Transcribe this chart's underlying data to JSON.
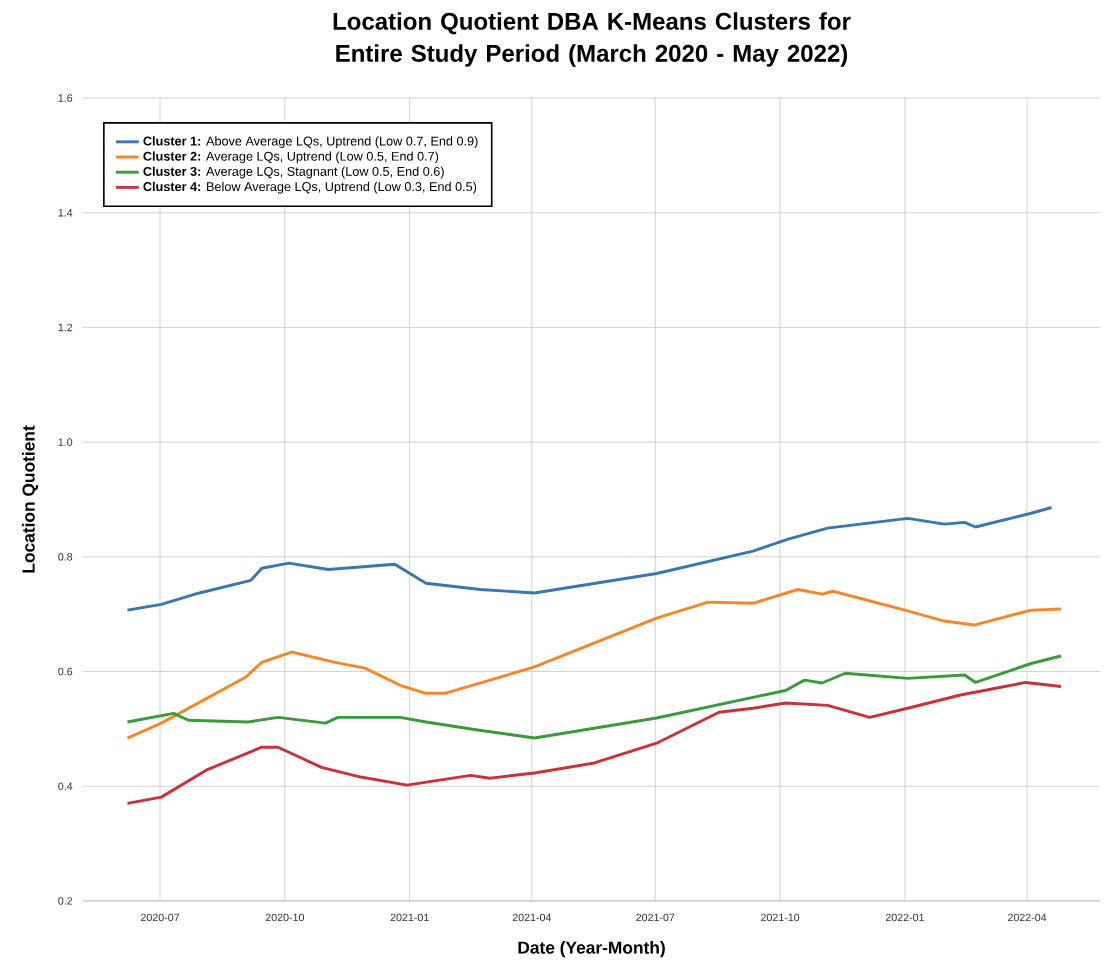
{
  "chart_data": {
    "type": "line",
    "title": "Location Quotient DBA K-Means Clusters for Entire Study Period (March 2020 - May 2022)",
    "xlabel": "Date (Year-Month)",
    "ylabel": "Location Quotient",
    "xlim": [
      "2020-05-05",
      "2022-05-25"
    ],
    "xticks": [
      {
        "value": "2020-07-01",
        "label": "2020-07"
      },
      {
        "value": "2020-10-01",
        "label": "2020-10"
      },
      {
        "value": "2021-01-01",
        "label": "2021-01"
      },
      {
        "value": "2021-04-01",
        "label": "2021-04"
      },
      {
        "value": "2021-07-01",
        "label": "2021-07"
      },
      {
        "value": "2021-10-01",
        "label": "2021-10"
      },
      {
        "value": "2022-01-01",
        "label": "2022-01"
      },
      {
        "value": "2022-04-01",
        "label": "2022-04"
      }
    ],
    "ylim": [
      0.2,
      1.6
    ],
    "yticks": [
      0.2,
      0.4,
      0.6,
      0.8,
      {
        "value": 1,
        "label": "1.0"
      },
      1.2,
      1.4,
      1.6
    ],
    "grid": true,
    "legend": "top left",
    "marker": "none",
    "line_style": "solid",
    "series": [
      {
        "name": "**Cluster 1:** Above Average LQs, Uptrend (Low 0.7, End 0.9)",
        "color": "#3a76b0",
        "x": [
          "2020-06-07",
          "2020-07-02",
          "2020-07-30",
          "2020-09-06",
          "2020-09-14",
          "2020-10-04",
          "2020-11-02",
          "2020-12-21",
          "2021-01-13",
          "2021-02-22",
          "2021-04-03",
          "2021-07-02",
          "2021-09-11",
          "2021-10-07",
          "2021-11-05",
          "2022-01-03",
          "2022-01-30",
          "2022-02-14",
          "2022-02-22",
          "2022-04-04",
          "2022-04-19"
        ],
        "values": [
          0.707,
          0.717,
          0.737,
          0.759,
          0.78,
          0.789,
          0.778,
          0.787,
          0.754,
          0.743,
          0.737,
          0.771,
          0.81,
          0.831,
          0.85,
          0.867,
          0.857,
          0.86,
          0.852,
          0.876,
          0.886
        ]
      },
      {
        "name": "**Cluster 2:** Average LQs, Uptrend (Low 0.5, End 0.7)",
        "color": "#f5862a",
        "x": [
          "2020-06-07",
          "2020-07-02",
          "2020-09-02",
          "2020-09-14",
          "2020-10-06",
          "2020-11-07",
          "2020-11-29",
          "2020-12-25",
          "2021-01-13",
          "2021-01-27",
          "2021-04-03",
          "2021-07-02",
          "2021-08-09",
          "2021-09-11",
          "2021-10-14",
          "2021-11-01",
          "2021-11-09",
          "2022-01-01",
          "2022-01-30",
          "2022-02-21",
          "2022-04-04",
          "2022-04-26"
        ],
        "values": [
          0.484,
          0.51,
          0.59,
          0.616,
          0.634,
          0.616,
          0.606,
          0.576,
          0.562,
          0.562,
          0.608,
          0.693,
          0.721,
          0.719,
          0.743,
          0.735,
          0.74,
          0.707,
          0.688,
          0.681,
          0.707,
          0.709
        ]
      },
      {
        "name": "**Cluster 3:** Average LQs, Stagnant (Low 0.5, End 0.6)",
        "color": "#3b9a3b",
        "x": [
          "2020-06-07",
          "2020-07-11",
          "2020-07-22",
          "2020-09-04",
          "2020-09-26",
          "2020-10-31",
          "2020-11-09",
          "2020-12-25",
          "2021-01-13",
          "2021-02-20",
          "2021-04-03",
          "2021-07-02",
          "2021-09-11",
          "2021-10-05",
          "2021-10-19",
          "2021-11-01",
          "2021-11-18",
          "2022-01-03",
          "2022-02-14",
          "2022-02-22",
          "2022-04-04",
          "2022-04-26"
        ],
        "values": [
          0.512,
          0.527,
          0.515,
          0.512,
          0.52,
          0.51,
          0.52,
          0.52,
          0.512,
          0.498,
          0.484,
          0.519,
          0.555,
          0.567,
          0.585,
          0.58,
          0.597,
          0.588,
          0.594,
          0.581,
          0.614,
          0.627
        ]
      },
      {
        "name": "**Cluster 4:** Below Average LQs, Uptrend (Low 0.3, End 0.5)",
        "color": "#c8323a",
        "x": [
          "2020-06-07",
          "2020-07-02",
          "2020-08-04",
          "2020-09-14",
          "2020-09-26",
          "2020-10-28",
          "2020-11-26",
          "2020-12-30",
          "2021-02-15",
          "2021-03-01",
          "2021-04-03",
          "2021-05-16",
          "2021-07-02",
          "2021-08-17",
          "2021-09-11",
          "2021-10-05",
          "2021-11-05",
          "2021-12-06",
          "2022-01-03",
          "2022-02-11",
          "2022-03-31",
          "2022-04-26"
        ],
        "values": [
          0.37,
          0.381,
          0.428,
          0.468,
          0.468,
          0.433,
          0.416,
          0.402,
          0.419,
          0.414,
          0.423,
          0.44,
          0.475,
          0.529,
          0.536,
          0.545,
          0.541,
          0.52,
          0.536,
          0.559,
          0.581,
          0.574
        ]
      }
    ]
  }
}
